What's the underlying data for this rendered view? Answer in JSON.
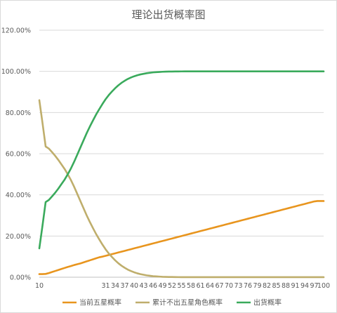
{
  "chart_data": {
    "type": "line",
    "title": "理论出货概率图",
    "xlabel": "",
    "ylabel": "",
    "ylim": [
      0,
      1.2
    ],
    "y_ticks": [
      "0.00%",
      "20.00%",
      "40.00%",
      "60.00%",
      "80.00%",
      "100.00%",
      "120.00%"
    ],
    "x": [
      10,
      11,
      12,
      13,
      14,
      15,
      16,
      17,
      18,
      19,
      20,
      21,
      22,
      23,
      24,
      25,
      26,
      27,
      28,
      29,
      30,
      31,
      32,
      33,
      34,
      35,
      36,
      37,
      38,
      39,
      40,
      41,
      42,
      43,
      44,
      45,
      46,
      47,
      48,
      49,
      50,
      51,
      52,
      53,
      54,
      55,
      56,
      57,
      58,
      59,
      60,
      61,
      62,
      63,
      64,
      65,
      66,
      67,
      68,
      69,
      70,
      71,
      72,
      73,
      74,
      75,
      76,
      77,
      78,
      79,
      80,
      81,
      82,
      83,
      84,
      85,
      86,
      87,
      88,
      89,
      90,
      91,
      92,
      93,
      94,
      95,
      96,
      97,
      98,
      99,
      100
    ],
    "x_tick_labels": [
      "10",
      "31",
      "34",
      "37",
      "40",
      "43",
      "46",
      "49",
      "52",
      "55",
      "58",
      "61",
      "64",
      "67",
      "70",
      "73",
      "76",
      "79",
      "82",
      "85",
      "88",
      "91",
      "94",
      "97",
      "100"
    ],
    "grid": true,
    "legend_position": "bottom",
    "series": [
      {
        "name": "当前五星概率",
        "color": "#E8951E",
        "values": [
          0.015,
          0.015,
          0.016,
          0.02,
          0.025,
          0.03,
          0.035,
          0.04,
          0.045,
          0.05,
          0.054,
          0.059,
          0.063,
          0.067,
          0.072,
          0.077,
          0.082,
          0.087,
          0.092,
          0.097,
          0.1,
          0.104,
          0.108,
          0.112,
          0.116,
          0.12,
          0.124,
          0.128,
          0.132,
          0.136,
          0.14,
          0.144,
          0.148,
          0.152,
          0.156,
          0.16,
          0.164,
          0.168,
          0.172,
          0.176,
          0.18,
          0.184,
          0.188,
          0.192,
          0.196,
          0.2,
          0.204,
          0.208,
          0.212,
          0.216,
          0.22,
          0.224,
          0.228,
          0.232,
          0.236,
          0.24,
          0.244,
          0.248,
          0.252,
          0.256,
          0.26,
          0.264,
          0.268,
          0.272,
          0.276,
          0.28,
          0.284,
          0.288,
          0.292,
          0.296,
          0.3,
          0.304,
          0.308,
          0.312,
          0.316,
          0.32,
          0.324,
          0.328,
          0.332,
          0.336,
          0.34,
          0.344,
          0.348,
          0.352,
          0.356,
          0.36,
          0.364,
          0.368,
          0.37,
          0.37,
          0.37
        ]
      },
      {
        "name": "累计不出五星角色概率",
        "color": "#BFAE6C",
        "values": [
          0.86,
          0.75,
          0.635,
          0.625,
          0.608,
          0.59,
          0.57,
          0.548,
          0.526,
          0.5,
          0.472,
          0.44,
          0.405,
          0.37,
          0.335,
          0.3,
          0.268,
          0.238,
          0.209,
          0.183,
          0.158,
          0.135,
          0.115,
          0.098,
          0.082,
          0.068,
          0.056,
          0.046,
          0.037,
          0.03,
          0.024,
          0.019,
          0.015,
          0.012,
          0.009,
          0.007,
          0.005,
          0.004,
          0.003,
          0.002,
          0.0015,
          0.001,
          0.001,
          0.0006,
          0.0004,
          0.0003,
          0.0002,
          0.0001,
          0.0001,
          0.0001,
          0.0001,
          0.0001,
          0.0001,
          0.0001,
          0.0001,
          0.0001,
          0.0001,
          0.0001,
          0.0001,
          0.0001,
          0.0001,
          0.0001,
          0.0001,
          0.0001,
          0.0001,
          0.0001,
          0.0001,
          0.0001,
          0.0001,
          0.0001,
          0.0001,
          0.0001,
          0.0001,
          0.0001,
          0.0001,
          0.0001,
          0.0001,
          0.0001,
          0.0001,
          0.0001,
          0.0001,
          0.0001,
          0.0001,
          0.0001,
          0.0001,
          0.0001,
          0.0001,
          0.0001,
          0.0001,
          0.0001,
          0.0001
        ]
      },
      {
        "name": "出货概率",
        "color": "#3AAA5C",
        "values": [
          0.14,
          0.25,
          0.365,
          0.375,
          0.392,
          0.41,
          0.43,
          0.452,
          0.474,
          0.5,
          0.528,
          0.56,
          0.595,
          0.63,
          0.665,
          0.7,
          0.732,
          0.762,
          0.791,
          0.817,
          0.842,
          0.865,
          0.885,
          0.902,
          0.918,
          0.932,
          0.944,
          0.954,
          0.963,
          0.97,
          0.976,
          0.981,
          0.985,
          0.988,
          0.991,
          0.993,
          0.995,
          0.996,
          0.997,
          0.998,
          0.9985,
          0.999,
          0.999,
          0.9994,
          0.9996,
          0.9997,
          0.9998,
          0.9999,
          0.9999,
          0.9999,
          0.9999,
          0.9999,
          0.9999,
          0.9999,
          0.9999,
          0.9999,
          0.9999,
          0.9999,
          0.9999,
          0.9999,
          0.9999,
          0.9999,
          0.9999,
          0.9999,
          0.9999,
          0.9999,
          0.9999,
          0.9999,
          0.9999,
          0.9999,
          0.9999,
          0.9999,
          0.9999,
          0.9999,
          0.9999,
          0.9999,
          0.9999,
          0.9999,
          0.9999,
          0.9999,
          0.9999,
          0.9999,
          0.9999,
          0.9999,
          0.9999,
          0.9999,
          0.9999,
          0.9999,
          0.9999,
          0.9999,
          0.9999
        ]
      }
    ]
  }
}
